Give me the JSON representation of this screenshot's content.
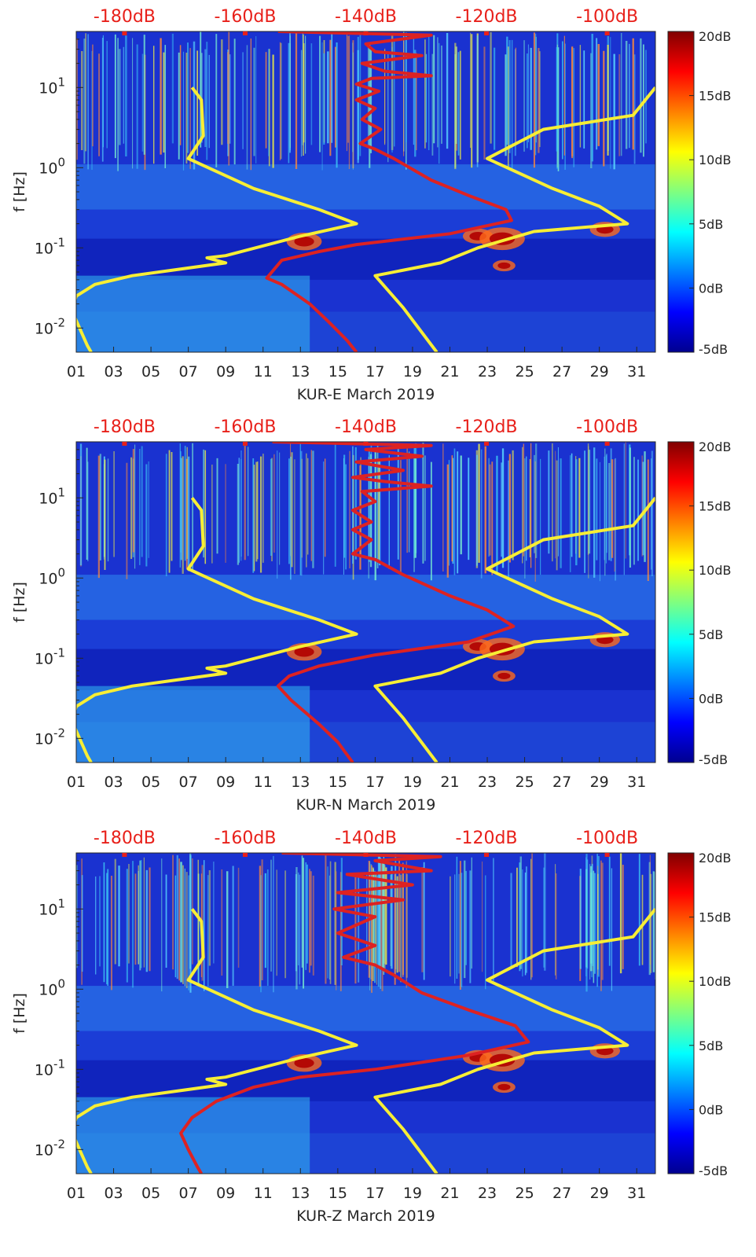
{
  "chart_data": [
    {
      "type": "heatmap",
      "title": "",
      "xlabel": "KUR-E March 2019",
      "ylabel": "f [Hz]",
      "x_ticks": [
        "01",
        "03",
        "05",
        "07",
        "09",
        "11",
        "13",
        "15",
        "17",
        "19",
        "21",
        "23",
        "25",
        "27",
        "29",
        "31"
      ],
      "x_range_days": [
        1,
        32
      ],
      "y_scale": "log",
      "y_range_hz": [
        0.005,
        50
      ],
      "y_ticks": [
        "10-2",
        "10-1",
        "100",
        "101"
      ],
      "top_axis": {
        "label_color": "#e8201a",
        "ticks": [
          "-180dB",
          "-160dB",
          "-140dB",
          "-120dB",
          "-100dB"
        ],
        "range_db": [
          -188,
          -92
        ]
      },
      "colorbar": {
        "range_db": [
          -5,
          20
        ],
        "ticks": [
          "20dB",
          "15dB",
          "10dB",
          "5dB",
          "0dB",
          "-5dB"
        ],
        "colormap": "jet"
      },
      "series": [
        {
          "name": "yellow low-noise model curve (left)",
          "color": "#f7ee35",
          "points": [
            [
              7.2,
              10
            ],
            [
              7.7,
              7
            ],
            [
              7.8,
              2.5
            ],
            [
              7,
              1.3
            ],
            [
              10.5,
              0.55
            ],
            [
              14,
              0.3
            ],
            [
              16,
              0.2
            ],
            [
              13,
              0.14
            ],
            [
              9,
              0.08
            ],
            [
              8,
              0.075
            ],
            [
              9,
              0.065
            ],
            [
              4,
              0.045
            ],
            [
              2,
              0.035
            ],
            [
              1,
              0.025
            ],
            [
              0.8,
              0.018
            ],
            [
              0.9,
              0.014
            ],
            [
              1.6,
              0.006
            ],
            [
              1.8,
              0.005
            ]
          ]
        },
        {
          "name": "yellow high-noise model curve (right)",
          "color": "#f7ee35",
          "points": [
            [
              32,
              10
            ],
            [
              30.8,
              4.5
            ],
            [
              26,
              3
            ],
            [
              23,
              1.3
            ],
            [
              26.5,
              0.55
            ],
            [
              29,
              0.33
            ],
            [
              30.5,
              0.2
            ],
            [
              25.5,
              0.16
            ],
            [
              22.5,
              0.1
            ],
            [
              20.5,
              0.065
            ],
            [
              17,
              0.045
            ],
            [
              18.5,
              0.018
            ],
            [
              20.3,
              0.005
            ]
          ]
        },
        {
          "name": "red station noise curve (KUR-E)",
          "color": "#dd2222",
          "points": [
            [
              11.8,
              50
            ],
            [
              20,
              45
            ],
            [
              16.5,
              35
            ],
            [
              17,
              28
            ],
            [
              19.5,
              25
            ],
            [
              16.3,
              20
            ],
            [
              17.5,
              16
            ],
            [
              20,
              14
            ],
            [
              16.8,
              13
            ],
            [
              16,
              11
            ],
            [
              17.2,
              9
            ],
            [
              16,
              7
            ],
            [
              17,
              5.5
            ],
            [
              16.3,
              4
            ],
            [
              17.3,
              3
            ],
            [
              16.2,
              2
            ],
            [
              17,
              1.7
            ],
            [
              18,
              1.3
            ],
            [
              20,
              0.7
            ],
            [
              22,
              0.45
            ],
            [
              24,
              0.3
            ],
            [
              24.3,
              0.22
            ],
            [
              21,
              0.15
            ],
            [
              16,
              0.11
            ],
            [
              14,
              0.09
            ],
            [
              12,
              0.07
            ],
            [
              11.2,
              0.042
            ],
            [
              12,
              0.035
            ],
            [
              13.5,
              0.02
            ],
            [
              14.5,
              0.012
            ],
            [
              15.5,
              0.007
            ],
            [
              16,
              0.005
            ]
          ]
        }
      ]
    },
    {
      "type": "heatmap",
      "title": "",
      "xlabel": "KUR-N March 2019",
      "ylabel": "f [Hz]",
      "x_ticks": [
        "01",
        "03",
        "05",
        "07",
        "09",
        "11",
        "13",
        "15",
        "17",
        "19",
        "21",
        "23",
        "25",
        "27",
        "29",
        "31"
      ],
      "x_range_days": [
        1,
        32
      ],
      "y_scale": "log",
      "y_range_hz": [
        0.005,
        50
      ],
      "y_ticks": [
        "10-2",
        "10-1",
        "100",
        "101"
      ],
      "top_axis": {
        "label_color": "#e8201a",
        "ticks": [
          "-180dB",
          "-160dB",
          "-140dB",
          "-120dB",
          "-100dB"
        ],
        "range_db": [
          -188,
          -92
        ]
      },
      "colorbar": {
        "range_db": [
          -5,
          20
        ],
        "ticks": [
          "20dB",
          "15dB",
          "10dB",
          "5dB",
          "0dB",
          "-5dB"
        ],
        "colormap": "jet"
      },
      "series": [
        {
          "name": "yellow low-noise model curve (left)",
          "color": "#f7ee35",
          "points": [
            [
              7.2,
              10
            ],
            [
              7.7,
              7
            ],
            [
              7.8,
              2.5
            ],
            [
              7,
              1.3
            ],
            [
              10.5,
              0.55
            ],
            [
              14,
              0.3
            ],
            [
              16,
              0.2
            ],
            [
              13,
              0.14
            ],
            [
              9,
              0.08
            ],
            [
              8,
              0.075
            ],
            [
              9,
              0.065
            ],
            [
              4,
              0.045
            ],
            [
              2,
              0.035
            ],
            [
              1,
              0.025
            ],
            [
              0.8,
              0.018
            ],
            [
              0.9,
              0.014
            ],
            [
              1.6,
              0.006
            ],
            [
              1.8,
              0.005
            ]
          ]
        },
        {
          "name": "yellow high-noise model curve (right)",
          "color": "#f7ee35",
          "points": [
            [
              32,
              10
            ],
            [
              30.8,
              4.5
            ],
            [
              26,
              3
            ],
            [
              23,
              1.3
            ],
            [
              26.5,
              0.55
            ],
            [
              29,
              0.33
            ],
            [
              30.5,
              0.2
            ],
            [
              25.5,
              0.16
            ],
            [
              22.5,
              0.1
            ],
            [
              20.5,
              0.065
            ],
            [
              17,
              0.045
            ],
            [
              18.5,
              0.018
            ],
            [
              20.3,
              0.005
            ]
          ]
        },
        {
          "name": "red station noise curve (KUR-N)",
          "color": "#dd2222",
          "points": [
            [
              11.5,
              50
            ],
            [
              20,
              45
            ],
            [
              16.5,
              40
            ],
            [
              19.5,
              33
            ],
            [
              16,
              28
            ],
            [
              18.5,
              22
            ],
            [
              15.8,
              18
            ],
            [
              17.5,
              16
            ],
            [
              20,
              14
            ],
            [
              16.3,
              12
            ],
            [
              17,
              9
            ],
            [
              15.8,
              7
            ],
            [
              16.8,
              5
            ],
            [
              15.8,
              4
            ],
            [
              16.8,
              3
            ],
            [
              15.8,
              2
            ],
            [
              17,
              1.7
            ],
            [
              18.5,
              1.1
            ],
            [
              21,
              0.6
            ],
            [
              23,
              0.4
            ],
            [
              24.4,
              0.25
            ],
            [
              22,
              0.16
            ],
            [
              17,
              0.11
            ],
            [
              14,
              0.08
            ],
            [
              12.4,
              0.06
            ],
            [
              11.8,
              0.045
            ],
            [
              12.5,
              0.03
            ],
            [
              14,
              0.015
            ],
            [
              15,
              0.009
            ],
            [
              15.8,
              0.005
            ]
          ]
        }
      ]
    },
    {
      "type": "heatmap",
      "title": "",
      "xlabel": "KUR-Z March 2019",
      "ylabel": "f [Hz]",
      "x_ticks": [
        "01",
        "03",
        "05",
        "07",
        "09",
        "11",
        "13",
        "15",
        "17",
        "19",
        "21",
        "23",
        "25",
        "27",
        "29",
        "31"
      ],
      "x_range_days": [
        1,
        32
      ],
      "y_scale": "log",
      "y_range_hz": [
        0.005,
        50
      ],
      "y_ticks": [
        "10-2",
        "10-1",
        "100",
        "101"
      ],
      "top_axis": {
        "label_color": "#e8201a",
        "ticks": [
          "-180dB",
          "-160dB",
          "-140dB",
          "-120dB",
          "-100dB"
        ],
        "range_db": [
          -188,
          -92
        ]
      },
      "colorbar": {
        "range_db": [
          -5,
          20
        ],
        "ticks": [
          "20dB",
          "15dB",
          "10dB",
          "5dB",
          "0dB",
          "-5dB"
        ],
        "colormap": "jet"
      },
      "series": [
        {
          "name": "yellow low-noise model curve (left)",
          "color": "#f7ee35",
          "points": [
            [
              7.2,
              10
            ],
            [
              7.7,
              7
            ],
            [
              7.8,
              2.5
            ],
            [
              7,
              1.3
            ],
            [
              10.5,
              0.55
            ],
            [
              14,
              0.3
            ],
            [
              16,
              0.2
            ],
            [
              13,
              0.14
            ],
            [
              9,
              0.08
            ],
            [
              8,
              0.075
            ],
            [
              9,
              0.065
            ],
            [
              4,
              0.045
            ],
            [
              2,
              0.035
            ],
            [
              1,
              0.025
            ],
            [
              0.8,
              0.018
            ],
            [
              0.9,
              0.014
            ],
            [
              1.6,
              0.006
            ],
            [
              1.8,
              0.005
            ]
          ]
        },
        {
          "name": "yellow high-noise model curve (right)",
          "color": "#f7ee35",
          "points": [
            [
              32,
              10
            ],
            [
              30.8,
              4.5
            ],
            [
              26,
              3
            ],
            [
              23,
              1.3
            ],
            [
              26.5,
              0.55
            ],
            [
              29,
              0.33
            ],
            [
              30.5,
              0.2
            ],
            [
              25.5,
              0.16
            ],
            [
              22.5,
              0.1
            ],
            [
              20.5,
              0.065
            ],
            [
              17,
              0.045
            ],
            [
              18.5,
              0.018
            ],
            [
              20.3,
              0.005
            ]
          ]
        },
        {
          "name": "red station noise curve (KUR-Z)",
          "color": "#dd2222",
          "points": [
            [
              12,
              50
            ],
            [
              20.5,
              45
            ],
            [
              17,
              40
            ],
            [
              20,
              30
            ],
            [
              15.5,
              27
            ],
            [
              19,
              20
            ],
            [
              15,
              16
            ],
            [
              18.5,
              13
            ],
            [
              14.8,
              10
            ],
            [
              17,
              8
            ],
            [
              15,
              5
            ],
            [
              17,
              3.5
            ],
            [
              15.3,
              2.5
            ],
            [
              17,
              2
            ],
            [
              18,
              1.5
            ],
            [
              19.5,
              0.9
            ],
            [
              22,
              0.55
            ],
            [
              24.5,
              0.35
            ],
            [
              25.2,
              0.22
            ],
            [
              22,
              0.15
            ],
            [
              17,
              0.1
            ],
            [
              13,
              0.08
            ],
            [
              10.5,
              0.06
            ],
            [
              8.5,
              0.04
            ],
            [
              7.2,
              0.025
            ],
            [
              6.6,
              0.016
            ],
            [
              7,
              0.01
            ],
            [
              7.5,
              0.006
            ],
            [
              7.7,
              0.005
            ]
          ]
        }
      ]
    }
  ]
}
